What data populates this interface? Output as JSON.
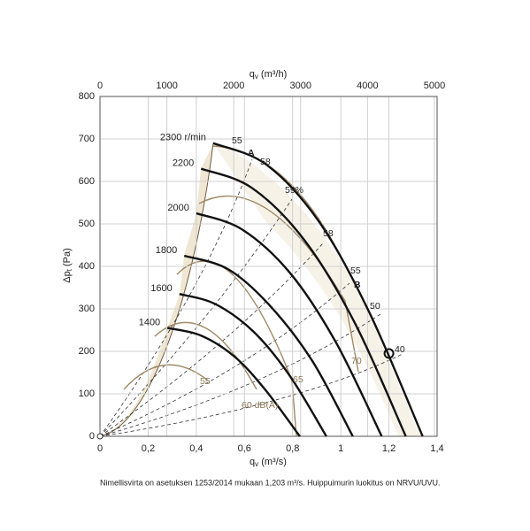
{
  "chart_data": {
    "type": "line",
    "x_label": {
      "main": "q",
      "sub": "v",
      "unit": " (m³/s)"
    },
    "x2_label": {
      "main": "q",
      "sub": "v",
      "unit": " (m³/h)"
    },
    "y_label": {
      "main": "Δp",
      "sub": "t",
      "unit": " (Pa)"
    },
    "xlim": [
      0,
      1.4
    ],
    "xticks": [
      0,
      {
        "value": 0.2,
        "label": "0,2"
      },
      {
        "value": 0.4,
        "label": "0,4"
      },
      {
        "value": 0.6,
        "label": "0,6"
      },
      {
        "value": 0.8,
        "label": "0,8"
      },
      1,
      {
        "value": 1.2,
        "label": "1,2"
      },
      {
        "value": 1.4,
        "label": "1,4"
      }
    ],
    "x2lim": [
      0,
      5040
    ],
    "x2ticks": [
      0,
      1000,
      2000,
      3000,
      4000,
      5000
    ],
    "ylim": [
      0,
      800
    ],
    "yticks": [
      0,
      100,
      200,
      300,
      400,
      500,
      600,
      700,
      800
    ],
    "grid": true,
    "series": [
      {
        "name": "2300 r/min",
        "color": "#111111",
        "x": [
          0.47,
          0.69,
          0.91,
          1.12,
          1.34
        ],
        "values": [
          690,
          640,
          505,
          290,
          0
        ]
      },
      {
        "name": "2200",
        "color": "#111111",
        "x": [
          0.42,
          0.63,
          0.85,
          1.06,
          1.27
        ],
        "values": [
          630,
          585,
          461,
          265,
          0
        ]
      },
      {
        "name": "2000",
        "color": "#111111",
        "x": [
          0.4,
          0.59,
          0.79,
          0.98,
          1.17
        ],
        "values": [
          525,
          487,
          384,
          221,
          0
        ]
      },
      {
        "name": "1800",
        "color": "#111111",
        "x": [
          0.35,
          0.53,
          0.7,
          0.88,
          1.05
        ],
        "values": [
          425,
          394,
          311,
          179,
          0
        ]
      },
      {
        "name": "1600",
        "color": "#111111",
        "x": [
          0.33,
          0.48,
          0.64,
          0.79,
          0.94
        ],
        "values": [
          335,
          311,
          245,
          141,
          0
        ]
      },
      {
        "name": "1400",
        "color": "#111111",
        "x": [
          0.28,
          0.42,
          0.56,
          0.69,
          0.83
        ],
        "values": [
          255,
          237,
          187,
          107,
          0
        ]
      }
    ],
    "operating_point": {
      "x": 1.2,
      "y": 195
    },
    "annotations": [
      "55",
      "A",
      "58",
      "59%",
      "58",
      "55",
      "B",
      "50",
      "40",
      "70",
      "65",
      "55",
      "60 dB(A)"
    ],
    "footnote": "Nimellisvirta on asetuksen 1253/2014 mukaan 1,203 m³/s. Huippuimurin luokitus on NRVU/UVU."
  }
}
